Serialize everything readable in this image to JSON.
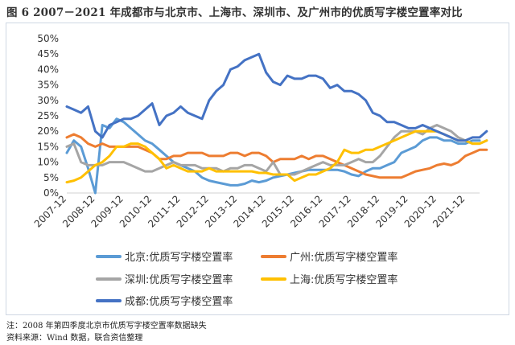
{
  "figure_title": "图 6   2007－2021 年成都市与北京市、上海市、深圳市、及广州市的优质写字楼空置率对比",
  "footnote_1": "注：2008 年第四季度北京市优质写字楼空置率数据缺失",
  "footnote_2": "资料来源：Wind 数据，联合资信整理",
  "chart_data": {
    "type": "line",
    "title": "图 6   2007－2021 年成都市与北京市、上海市、深圳市、及广州市的优质写字楼空置率对比",
    "xlabel": "",
    "ylabel": "",
    "ylim": [
      0,
      50
    ],
    "ytick_labels": [
      "0%",
      "5%",
      "10%",
      "15%",
      "20%",
      "25%",
      "30%",
      "35%",
      "40%",
      "45%",
      "50%"
    ],
    "x_tick_labels": [
      "2007-12",
      "2008-12",
      "2009-12",
      "2010-12",
      "2011-12",
      "2012-12",
      "2013-12",
      "2014-12",
      "2015-12",
      "2016-12",
      "2017-12",
      "2018-12",
      "2019-12",
      "2020-12",
      "2021-12"
    ],
    "x_tick_positions": [
      0,
      4,
      8,
      12,
      16,
      20,
      24,
      28,
      32,
      36,
      40,
      44,
      48,
      52,
      56
    ],
    "x_unit": "quarter index from 2007-12 (one step = one quarter)",
    "grid": false,
    "legend_position": "bottom",
    "series": [
      {
        "name": "北京:优质写字楼空置率",
        "color": "#5b9bd5",
        "values": [
          13,
          17,
          15,
          8,
          0,
          22,
          21,
          24,
          23,
          21,
          19,
          17,
          16,
          14,
          12,
          10,
          9,
          8,
          7,
          5,
          4,
          3.5,
          3,
          2.5,
          2.5,
          3,
          4,
          3.5,
          4,
          5,
          5.5,
          6,
          6.5,
          7,
          7.5,
          7.5,
          7.5,
          7.5,
          7.5,
          7,
          6,
          5.5,
          7,
          8,
          8,
          9,
          10,
          13,
          14,
          15,
          17,
          18,
          18,
          17,
          17,
          16,
          16,
          17,
          17
        ]
      },
      {
        "name": "广州:优质写字楼空置率",
        "color": "#ed7d31",
        "values": [
          18,
          19,
          18,
          16,
          15,
          16,
          15,
          15,
          15,
          15,
          15,
          14,
          13,
          11,
          11,
          12,
          12,
          13,
          13,
          13,
          12,
          12,
          12,
          13,
          13,
          12,
          13,
          13,
          12,
          10,
          11,
          11,
          11,
          12,
          11,
          12,
          12,
          11,
          10,
          9,
          8,
          7,
          6,
          5.5,
          5,
          5,
          5,
          5,
          6,
          7,
          7.5,
          8,
          9,
          9.5,
          9,
          10,
          12,
          13,
          14,
          14
        ]
      },
      {
        "name": "深圳:优质写字楼空置率",
        "color": "#a5a5a5",
        "values": [
          15,
          16,
          10,
          9,
          9,
          9,
          10,
          10,
          10,
          9,
          8,
          7,
          7,
          8,
          9,
          10,
          9,
          9,
          9,
          8,
          8,
          8,
          7,
          8,
          8,
          9,
          9,
          8,
          7,
          10,
          6,
          6,
          6,
          7,
          8,
          9,
          10,
          9,
          9,
          9,
          10,
          11,
          10,
          10,
          12,
          15,
          18,
          20,
          20,
          20,
          19,
          21,
          22,
          21,
          20,
          18,
          17,
          16,
          16,
          17
        ]
      },
      {
        "name": "上海:优质写字楼空置率",
        "color": "#ffc000",
        "values": [
          3.5,
          4,
          5,
          7,
          9,
          10,
          12,
          15,
          15,
          16,
          16,
          15,
          13,
          11,
          8,
          9,
          8,
          7,
          7,
          7,
          8,
          7,
          7,
          7,
          7,
          7,
          7,
          6.5,
          6.5,
          6,
          6,
          6,
          4,
          5,
          6,
          6,
          7,
          8,
          10,
          14,
          13,
          13,
          14,
          14,
          15,
          16,
          17,
          18,
          19,
          20,
          20,
          20,
          20,
          19,
          18,
          17,
          17,
          16,
          16,
          17
        ]
      },
      {
        "name": "成都:优质写字楼空置率",
        "color": "#4472c4",
        "values": [
          28,
          27,
          26,
          28,
          20,
          18,
          22,
          23,
          24,
          24,
          25,
          27,
          29,
          22,
          25,
          26,
          28,
          26,
          25,
          24,
          30,
          33,
          35,
          40,
          41,
          43,
          44,
          45,
          39,
          36,
          35,
          38,
          37,
          37,
          38,
          38,
          37,
          34,
          35,
          33,
          33,
          32,
          30,
          26,
          25,
          23,
          23,
          22,
          21,
          21,
          22,
          21,
          20,
          19,
          18,
          17,
          17,
          18,
          18,
          20
        ]
      }
    ]
  }
}
